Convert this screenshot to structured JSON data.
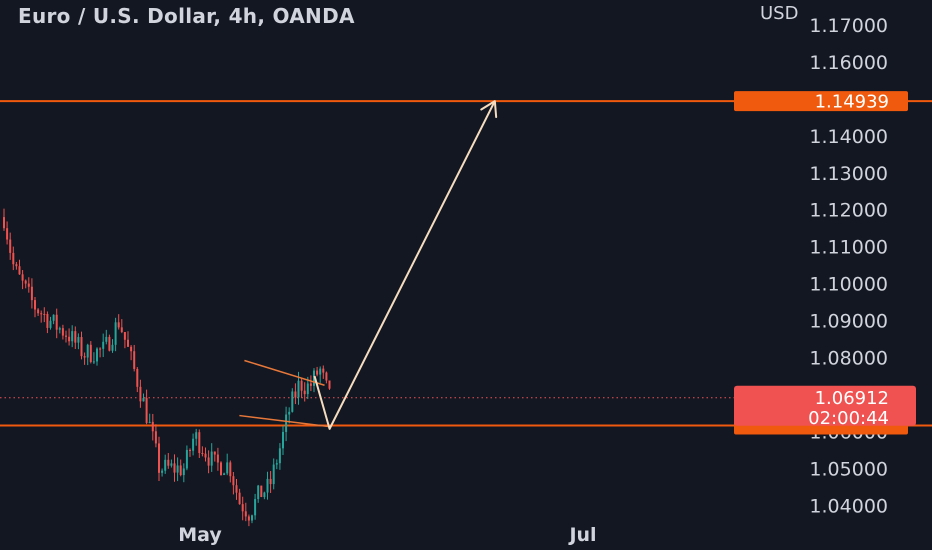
{
  "header": {
    "title": "Euro / U.S. Dollar, 4h, OANDA",
    "currency": "USD"
  },
  "chart_data": {
    "type": "candlestick",
    "symbol": "EURUSD",
    "timeframe": "4h",
    "broker": "OANDA",
    "y_ticks": [
      "1.17000",
      "1.16000",
      "1.14000",
      "1.13000",
      "1.12000",
      "1.11000",
      "1.10000",
      "1.09000",
      "1.08000",
      "1.07000",
      "1.06000",
      "1.05000",
      "1.04000"
    ],
    "y_tick_values": [
      1.17,
      1.16,
      1.14,
      1.13,
      1.12,
      1.11,
      1.1,
      1.09,
      1.08,
      1.07,
      1.06,
      1.05,
      1.04
    ],
    "x_ticks": [
      "May",
      "Jul"
    ],
    "ylim": [
      1.0355,
      1.1735
    ],
    "grid": false,
    "horizontal_lines": [
      {
        "label": "1.14939",
        "value": 1.14939,
        "color": "#f05a0e"
      },
      {
        "value": 1.0616,
        "color": "#f05a0e"
      }
    ],
    "current_price": {
      "value": 1.06912,
      "label": "1.06912",
      "countdown": "02:00:44",
      "color": "#f05252"
    },
    "channel": {
      "color": "#e8783a",
      "upper": [
        [
          "2023-04-24",
          1.0792
        ],
        [
          "2023-05-10",
          1.0725
        ]
      ],
      "lower": [
        [
          "2023-04-23",
          1.0643
        ],
        [
          "2023-05-11",
          1.0613
        ]
      ]
    },
    "projection": {
      "color": "#f5dcbf",
      "points": [
        [
          "2023-05-08",
          1.075
        ],
        [
          "2023-05-11",
          1.0607
        ],
        [
          "2023-06-13",
          1.14939
        ]
      ]
    },
    "anchors": [
      [
        "2023-03-07",
        1.118
      ],
      [
        "2023-03-09",
        1.104
      ],
      [
        "2023-03-13",
        1.094
      ],
      [
        "2023-03-17",
        1.089
      ],
      [
        "2023-03-20",
        1.086
      ],
      [
        "2023-03-23",
        1.081
      ],
      [
        "2023-03-27",
        1.082
      ],
      [
        "2023-03-30",
        1.09
      ],
      [
        "2023-04-01",
        1.081
      ],
      [
        "2023-04-03",
        1.072
      ],
      [
        "2023-04-05",
        1.062
      ],
      [
        "2023-04-07",
        1.05
      ],
      [
        "2023-04-12",
        1.05
      ],
      [
        "2023-04-14",
        1.059
      ],
      [
        "2023-04-18",
        1.051
      ],
      [
        "2023-04-21",
        1.051
      ],
      [
        "2023-04-23",
        1.041
      ],
      [
        "2023-04-25",
        1.038
      ],
      [
        "2023-04-27",
        1.043
      ],
      [
        "2023-04-29",
        1.045
      ],
      [
        "2023-05-01",
        1.055
      ],
      [
        "2023-05-03",
        1.066
      ],
      [
        "2023-05-05",
        1.073
      ],
      [
        "2023-05-07",
        1.072
      ],
      [
        "2023-05-09",
        1.077
      ],
      [
        "2023-05-11",
        1.069
      ]
    ]
  }
}
